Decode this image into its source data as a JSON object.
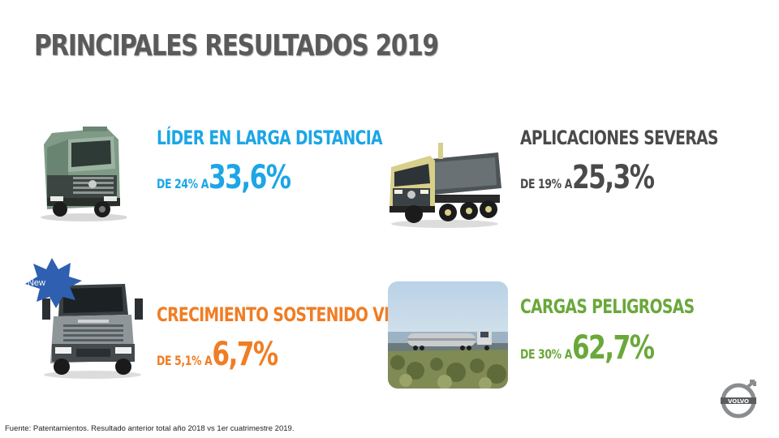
{
  "title": "PRINCIPALES RESULTADOS 2019",
  "items": [
    {
      "headline": "LÍDER EN LARGA DISTANCIA",
      "prefix": "DE 24% A",
      "value": "33,6%",
      "color": "#1ba6e6",
      "image": "tractor-truck-image"
    },
    {
      "headline": "APLICACIONES SEVERAS",
      "prefix": "DE 19% A",
      "value": "25,3%",
      "color": "#4a4a4a",
      "image": "dump-truck-image"
    },
    {
      "headline": "CRECIMIENTO SOSTENIDO VM",
      "prefix": "DE 5,1% A",
      "value": "6,7%",
      "color": "#f07d24",
      "image": "vm-truck-image"
    },
    {
      "headline": "CARGAS PELIGROSAS",
      "prefix": "DE 30% A",
      "value": "62,7%",
      "color": "#6aa83a",
      "image": "tanker-truck-image"
    }
  ],
  "badge": {
    "label": "New",
    "color": "#2f5fb0"
  },
  "footer": "Fuente: Patentamientos. Resultado anterior total año 2018 vs 1er cuatrimestre 2019.",
  "logo": "volvo-logo"
}
